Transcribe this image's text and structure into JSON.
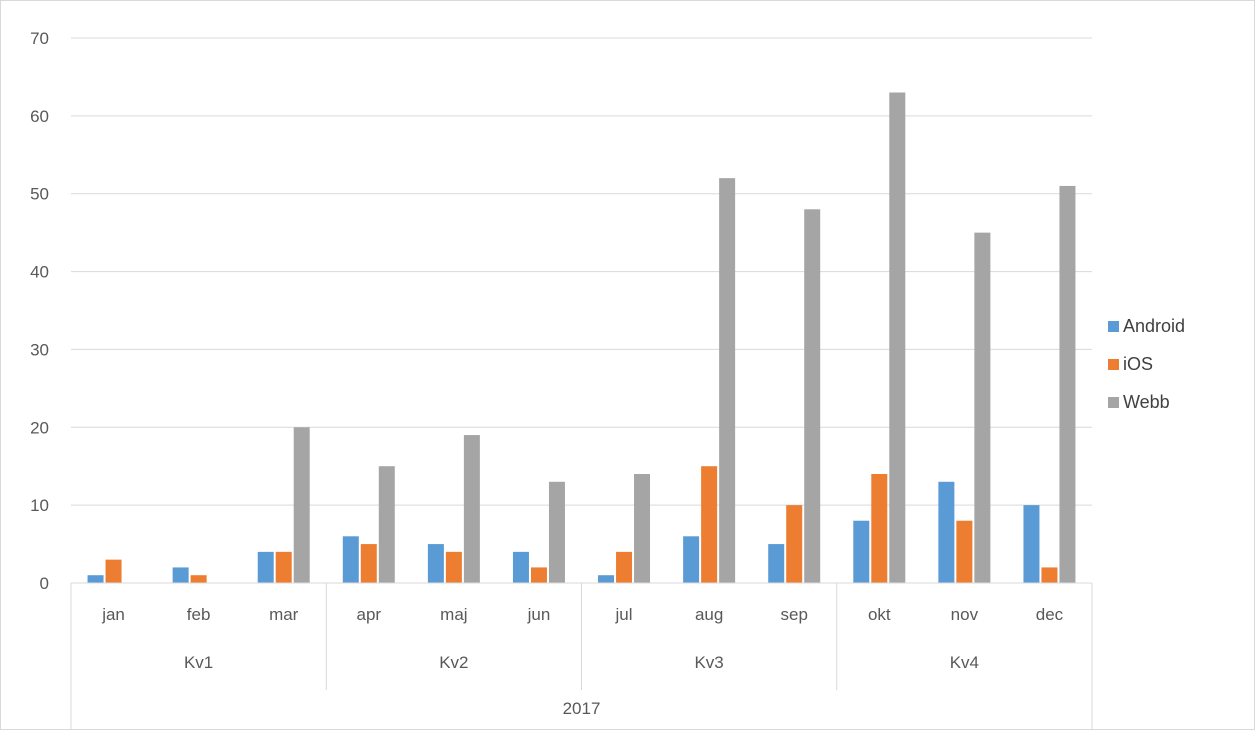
{
  "chart_data": {
    "type": "bar",
    "categories": [
      "jan",
      "feb",
      "mar",
      "apr",
      "maj",
      "jun",
      "jul",
      "aug",
      "sep",
      "okt",
      "nov",
      "dec"
    ],
    "groups": [
      {
        "label": "Kv1",
        "span": 3
      },
      {
        "label": "Kv2",
        "span": 3
      },
      {
        "label": "Kv3",
        "span": 3
      },
      {
        "label": "Kv4",
        "span": 3
      }
    ],
    "super_group": "2017",
    "series": [
      {
        "name": "Android",
        "color": "#5b9bd5",
        "values": [
          1,
          2,
          4,
          6,
          5,
          4,
          1,
          6,
          5,
          8,
          13,
          10
        ]
      },
      {
        "name": "iOS",
        "color": "#ed7d31",
        "values": [
          3,
          1,
          4,
          5,
          4,
          2,
          4,
          15,
          10,
          14,
          8,
          2
        ]
      },
      {
        "name": "Webb",
        "color": "#a5a5a5",
        "values": [
          0,
          0,
          20,
          15,
          19,
          13,
          14,
          52,
          48,
          63,
          45,
          51
        ]
      }
    ],
    "ylim": [
      0,
      70
    ],
    "yticks": [
      0,
      10,
      20,
      30,
      40,
      50,
      60,
      70
    ],
    "grid": true,
    "legend_position": "right"
  }
}
